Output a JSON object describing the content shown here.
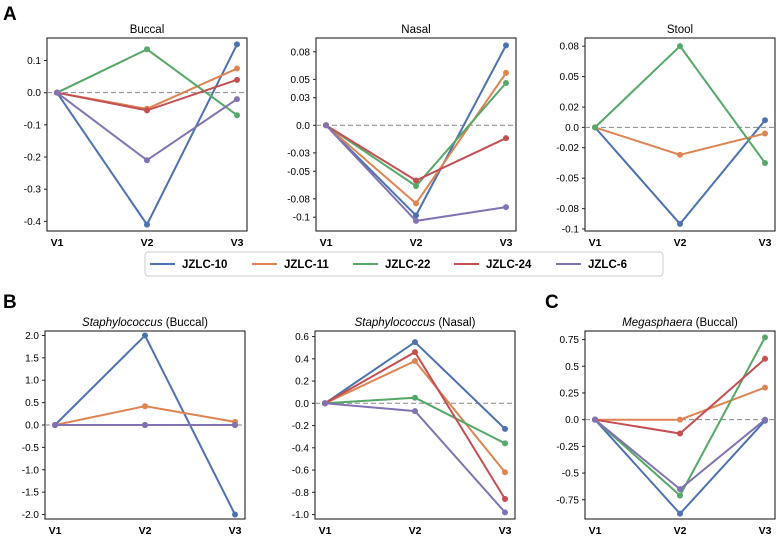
{
  "panel_letters": [
    "A",
    "B",
    "C"
  ],
  "legend": [
    {
      "name": "JZLC-10",
      "color": "#4c72b0"
    },
    {
      "name": "JZLC-11",
      "color": "#dd8452"
    },
    {
      "name": "JZLC-22",
      "color": "#55a868"
    },
    {
      "name": "JZLC-24",
      "color": "#c44e52"
    },
    {
      "name": "JZLC-6",
      "color": "#8172b3"
    }
  ],
  "chart_data": [
    {
      "id": "A-buccal",
      "type": "line",
      "title": "Buccal",
      "title_italic": "",
      "categories": [
        "V1",
        "V2",
        "V3"
      ],
      "ylim": [
        -0.43,
        0.17
      ],
      "yticks": [
        0.1,
        0.0,
        -0.1,
        -0.2,
        -0.3,
        -0.4
      ],
      "ytick_labels": [
        "0.1",
        "0.0",
        "-0.1",
        "-0.2",
        "-0.3",
        "-0.4"
      ],
      "reference_line": 0,
      "series": [
        {
          "name": "JZLC-10",
          "values": [
            0,
            -0.41,
            0.15
          ]
        },
        {
          "name": "JZLC-11",
          "values": [
            0,
            -0.05,
            0.075
          ]
        },
        {
          "name": "JZLC-22",
          "values": [
            0,
            0.135,
            -0.07
          ]
        },
        {
          "name": "JZLC-24",
          "values": [
            0,
            -0.055,
            0.04
          ]
        },
        {
          "name": "JZLC-6",
          "values": [
            0,
            -0.21,
            -0.02
          ]
        }
      ]
    },
    {
      "id": "A-nasal",
      "type": "line",
      "title": "Nasal",
      "title_italic": "",
      "categories": [
        "V1",
        "V2",
        "V3"
      ],
      "ylim": [
        -0.115,
        0.095
      ],
      "yticks": [
        0.08,
        0.05,
        0.03,
        0.0,
        -0.03,
        -0.05,
        -0.08,
        -0.1
      ],
      "ytick_labels": [
        "0.08",
        "0.05",
        "0.03",
        "0.0",
        "-0.03",
        "-0.05",
        "-0.08",
        "-0.1"
      ],
      "reference_line": 0,
      "series": [
        {
          "name": "JZLC-10",
          "values": [
            0,
            -0.098,
            0.087
          ]
        },
        {
          "name": "JZLC-11",
          "values": [
            0,
            -0.085,
            0.057
          ]
        },
        {
          "name": "JZLC-22",
          "values": [
            0,
            -0.066,
            0.046
          ]
        },
        {
          "name": "JZLC-24",
          "values": [
            0,
            -0.06,
            -0.014
          ]
        },
        {
          "name": "JZLC-6",
          "values": [
            0,
            -0.104,
            -0.089
          ]
        }
      ]
    },
    {
      "id": "A-stool",
      "type": "line",
      "title": "Stool",
      "title_italic": "",
      "categories": [
        "V1",
        "V2",
        "V3"
      ],
      "ylim": [
        -0.102,
        0.088
      ],
      "yticks": [
        0.08,
        0.05,
        0.02,
        0.0,
        -0.02,
        -0.05,
        -0.08,
        -0.1
      ],
      "ytick_labels": [
        "0.08",
        "0.05",
        "0.02",
        "0.0",
        "-0.02",
        "-0.05",
        "-0.08",
        "-0.1"
      ],
      "reference_line": 0,
      "series": [
        {
          "name": "JZLC-10",
          "values": [
            0,
            -0.095,
            0.007
          ]
        },
        {
          "name": "JZLC-11",
          "values": [
            0,
            -0.027,
            -0.006
          ]
        },
        {
          "name": "JZLC-22",
          "values": [
            0,
            0.08,
            -0.035
          ]
        }
      ]
    },
    {
      "id": "B-staph-buccal",
      "type": "line",
      "title": " (Buccal)",
      "title_italic": "Staphylococcus",
      "categories": [
        "V1",
        "V2",
        "V3"
      ],
      "ylim": [
        -2.1,
        2.1
      ],
      "yticks": [
        2.0,
        1.5,
        1.0,
        0.5,
        0.0,
        -0.5,
        -1.0,
        -1.5,
        -2.0
      ],
      "ytick_labels": [
        "2.0",
        "1.5",
        "1.0",
        "0.5",
        "0.0",
        "-0.5",
        "-1.0",
        "-1.5",
        "-2.0"
      ],
      "reference_line": 0,
      "series": [
        {
          "name": "JZLC-10",
          "values": [
            0,
            2.0,
            -2.0
          ]
        },
        {
          "name": "JZLC-11",
          "values": [
            0,
            0.42,
            0.07
          ]
        },
        {
          "name": "JZLC-22",
          "values": [
            0,
            0.0,
            0.0
          ]
        },
        {
          "name": "JZLC-24",
          "values": [
            0,
            0.0,
            0.0
          ]
        },
        {
          "name": "JZLC-6",
          "values": [
            0,
            0.0,
            0.0
          ]
        }
      ]
    },
    {
      "id": "B-staph-nasal",
      "type": "line",
      "title": " (Nasal)",
      "title_italic": "Staphylococcus",
      "categories": [
        "V1",
        "V2",
        "V3"
      ],
      "ylim": [
        -1.04,
        0.65
      ],
      "yticks": [
        0.6,
        0.4,
        0.2,
        0.0,
        -0.2,
        -0.4,
        -0.6,
        -0.8,
        -1.0
      ],
      "ytick_labels": [
        "0.6",
        "0.4",
        "0.2",
        "0.0",
        "-0.2",
        "-0.4",
        "-0.6",
        "-0.8",
        "-1.0"
      ],
      "reference_line": 0,
      "series": [
        {
          "name": "JZLC-10",
          "values": [
            0,
            0.55,
            -0.23
          ]
        },
        {
          "name": "JZLC-11",
          "values": [
            0,
            0.38,
            -0.62
          ]
        },
        {
          "name": "JZLC-22",
          "values": [
            0,
            0.05,
            -0.36
          ]
        },
        {
          "name": "JZLC-24",
          "values": [
            0,
            0.46,
            -0.86
          ]
        },
        {
          "name": "JZLC-6",
          "values": [
            0,
            -0.07,
            -0.98
          ]
        }
      ]
    },
    {
      "id": "C-megasphaera-buccal",
      "type": "line",
      "title": " (Buccal)",
      "title_italic": "Megasphaera",
      "categories": [
        "V1",
        "V2",
        "V3"
      ],
      "ylim": [
        -0.93,
        0.83
      ],
      "yticks": [
        0.75,
        0.5,
        0.25,
        0.0,
        -0.25,
        -0.5,
        -0.75
      ],
      "ytick_labels": [
        "0.75",
        "0.5",
        "0.25",
        "0.0",
        "-0.25",
        "-0.5",
        "-0.75"
      ],
      "reference_line": 0,
      "series": [
        {
          "name": "JZLC-10",
          "values": [
            0,
            -0.88,
            -0.01
          ]
        },
        {
          "name": "JZLC-11",
          "values": [
            0,
            0.0,
            0.3
          ]
        },
        {
          "name": "JZLC-22",
          "values": [
            0,
            -0.71,
            0.77
          ]
        },
        {
          "name": "JZLC-24",
          "values": [
            0,
            -0.13,
            0.57
          ]
        },
        {
          "name": "JZLC-6",
          "values": [
            0,
            -0.65,
            0.0
          ]
        }
      ]
    }
  ]
}
